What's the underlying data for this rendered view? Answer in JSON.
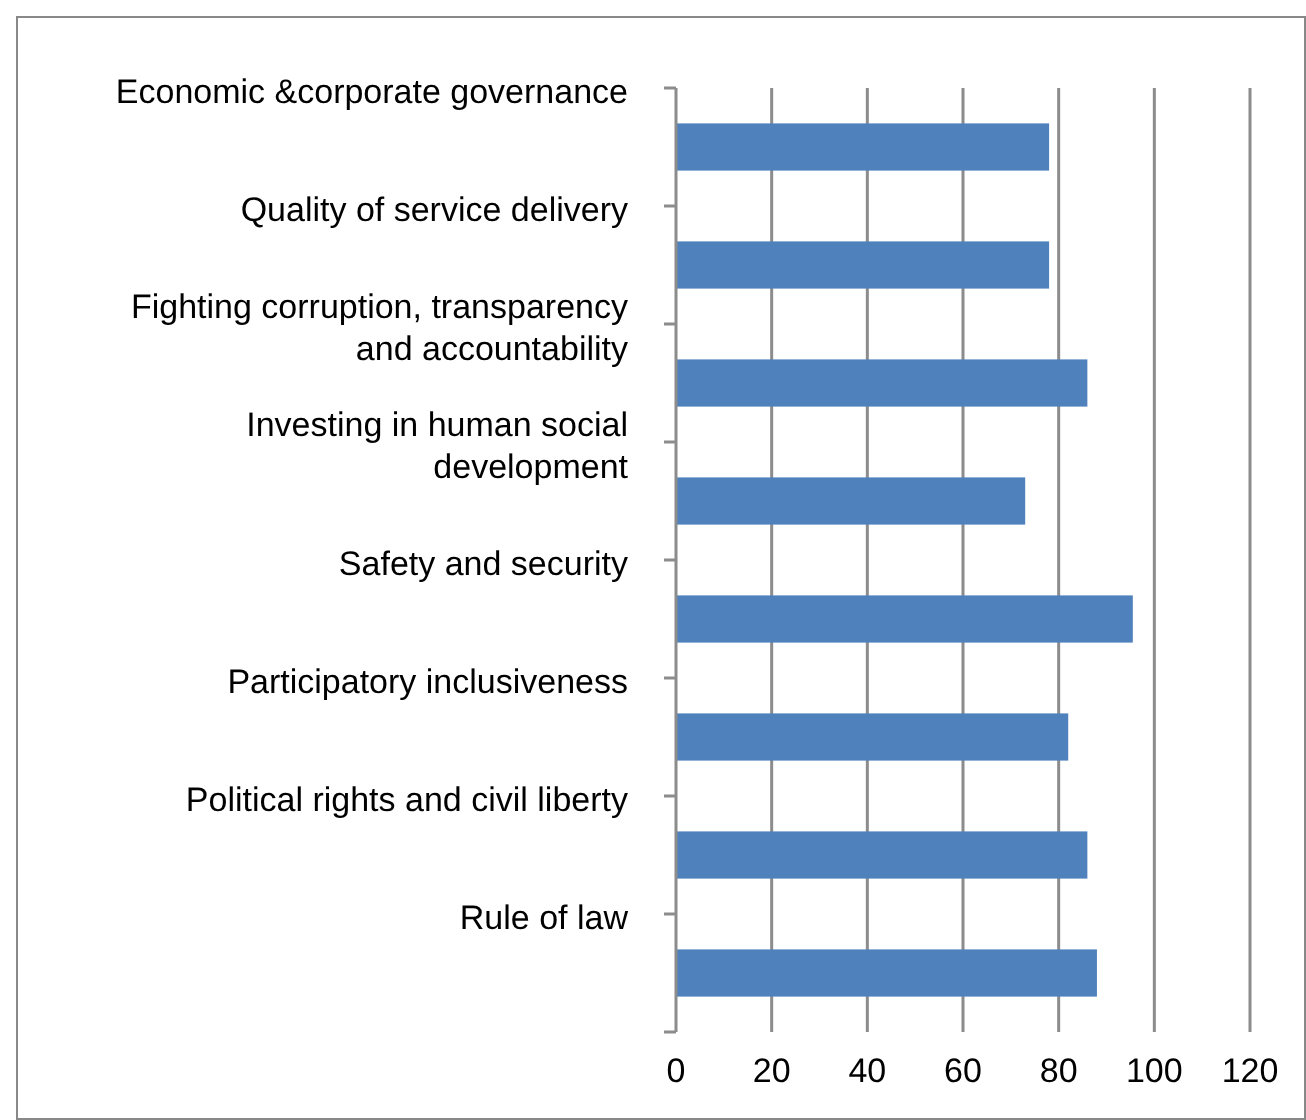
{
  "chart_data": {
    "type": "bar",
    "orientation": "horizontal",
    "categories": [
      "Economic &corporate governance",
      "Quality of service delivery",
      "Fighting corruption, transparency and accountability",
      "Investing in human social development",
      "Safety and security",
      "Participatory inclusiveness",
      "Political rights and civil liberty",
      "Rule of law"
    ],
    "values": [
      78,
      78,
      86,
      73,
      95.5,
      82,
      86,
      88
    ],
    "color": "#4f81bd",
    "xlim": [
      0,
      120
    ],
    "xticks": [
      0,
      20,
      40,
      60,
      80,
      100,
      120
    ],
    "grid": "x"
  }
}
